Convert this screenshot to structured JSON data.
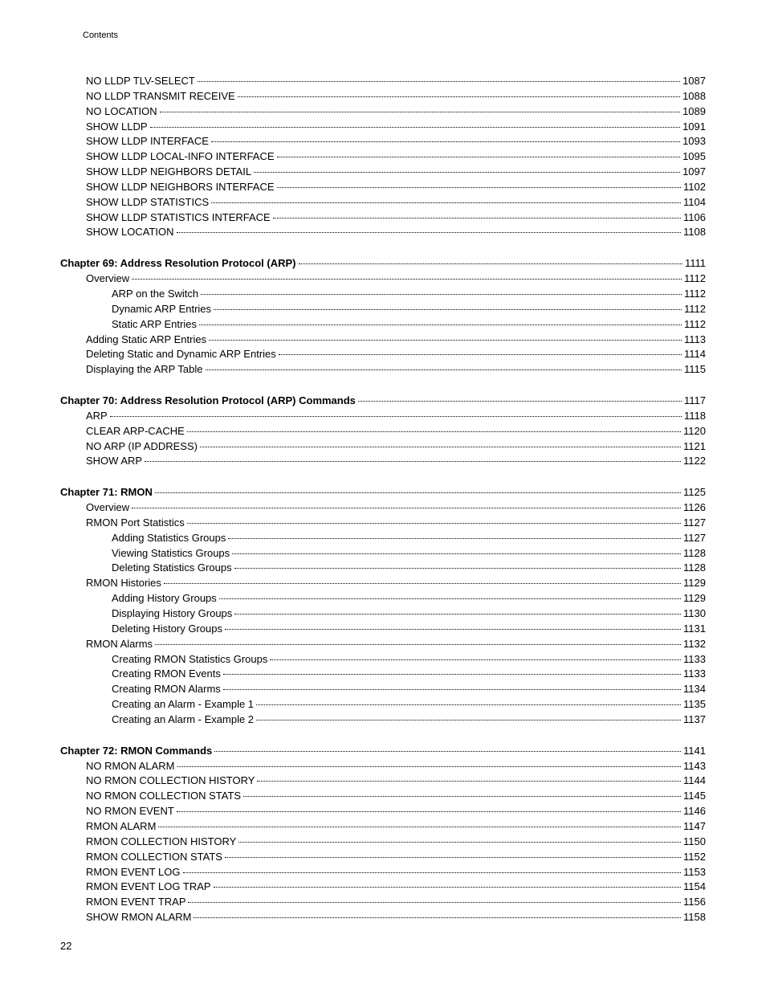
{
  "header_label": "Contents",
  "footer_page": "22",
  "sections": [
    {
      "entries": [
        {
          "label": "NO LLDP TLV-SELECT",
          "page": "1087",
          "indent": 1,
          "bold": false
        },
        {
          "label": "NO LLDP TRANSMIT RECEIVE",
          "page": "1088",
          "indent": 1,
          "bold": false
        },
        {
          "label": "NO LOCATION",
          "page": "1089",
          "indent": 1,
          "bold": false
        },
        {
          "label": "SHOW LLDP",
          "page": "1091",
          "indent": 1,
          "bold": false
        },
        {
          "label": "SHOW LLDP INTERFACE",
          "page": "1093",
          "indent": 1,
          "bold": false
        },
        {
          "label": "SHOW LLDP LOCAL-INFO INTERFACE",
          "page": "1095",
          "indent": 1,
          "bold": false
        },
        {
          "label": "SHOW LLDP NEIGHBORS DETAIL",
          "page": "1097",
          "indent": 1,
          "bold": false
        },
        {
          "label": "SHOW LLDP NEIGHBORS INTERFACE",
          "page": "1102",
          "indent": 1,
          "bold": false
        },
        {
          "label": "SHOW LLDP STATISTICS",
          "page": "1104",
          "indent": 1,
          "bold": false
        },
        {
          "label": "SHOW LLDP STATISTICS INTERFACE",
          "page": "1106",
          "indent": 1,
          "bold": false
        },
        {
          "label": "SHOW LOCATION",
          "page": "1108",
          "indent": 1,
          "bold": false
        }
      ]
    },
    {
      "entries": [
        {
          "label": "Chapter 69: Address Resolution Protocol (ARP) ",
          "page": "1111",
          "indent": 0,
          "bold": true
        },
        {
          "label": "Overview",
          "page": "1112",
          "indent": 1,
          "bold": false
        },
        {
          "label": "ARP on the Switch",
          "page": "1112",
          "indent": 2,
          "bold": false
        },
        {
          "label": "Dynamic ARP Entries",
          "page": "1112",
          "indent": 2,
          "bold": false
        },
        {
          "label": "Static ARP Entries",
          "page": "1112",
          "indent": 2,
          "bold": false
        },
        {
          "label": "Adding Static ARP Entries",
          "page": "1113",
          "indent": 1,
          "bold": false
        },
        {
          "label": "Deleting Static and Dynamic ARP Entries",
          "page": "1114",
          "indent": 1,
          "bold": false
        },
        {
          "label": "Displaying the ARP Table",
          "page": "1115",
          "indent": 1,
          "bold": false
        }
      ]
    },
    {
      "entries": [
        {
          "label": "Chapter 70: Address Resolution Protocol (ARP) Commands ",
          "page": "1117",
          "indent": 0,
          "bold": true
        },
        {
          "label": "ARP ",
          "page": "1118",
          "indent": 1,
          "bold": false
        },
        {
          "label": "CLEAR ARP-CACHE",
          "page": "1120",
          "indent": 1,
          "bold": false
        },
        {
          "label": "NO ARP (IP ADDRESS)",
          "page": "1121",
          "indent": 1,
          "bold": false
        },
        {
          "label": "SHOW ARP",
          "page": "1122",
          "indent": 1,
          "bold": false
        }
      ]
    },
    {
      "entries": [
        {
          "label": "Chapter 71: RMON ",
          "page": "1125",
          "indent": 0,
          "bold": true
        },
        {
          "label": "Overview",
          "page": "1126",
          "indent": 1,
          "bold": false
        },
        {
          "label": "RMON Port Statistics",
          "page": "1127",
          "indent": 1,
          "bold": false
        },
        {
          "label": "Adding Statistics Groups",
          "page": "1127",
          "indent": 2,
          "bold": false
        },
        {
          "label": "Viewing Statistics Groups",
          "page": "1128",
          "indent": 2,
          "bold": false
        },
        {
          "label": "Deleting Statistics Groups",
          "page": "1128",
          "indent": 2,
          "bold": false
        },
        {
          "label": "RMON Histories",
          "page": "1129",
          "indent": 1,
          "bold": false
        },
        {
          "label": "Adding History Groups",
          "page": "1129",
          "indent": 2,
          "bold": false
        },
        {
          "label": "Displaying History Groups",
          "page": "1130",
          "indent": 2,
          "bold": false
        },
        {
          "label": "Deleting History Groups",
          "page": "1131",
          "indent": 2,
          "bold": false
        },
        {
          "label": "RMON Alarms",
          "page": "1132",
          "indent": 1,
          "bold": false
        },
        {
          "label": "Creating RMON Statistics Groups",
          "page": "1133",
          "indent": 2,
          "bold": false
        },
        {
          "label": "Creating RMON Events",
          "page": "1133",
          "indent": 2,
          "bold": false
        },
        {
          "label": "Creating RMON Alarms",
          "page": "1134",
          "indent": 2,
          "bold": false
        },
        {
          "label": "Creating an Alarm - Example 1",
          "page": "1135",
          "indent": 2,
          "bold": false
        },
        {
          "label": "Creating an Alarm - Example 2",
          "page": "1137",
          "indent": 2,
          "bold": false
        }
      ]
    },
    {
      "entries": [
        {
          "label": "Chapter 72: RMON Commands ",
          "page": "1141",
          "indent": 0,
          "bold": true
        },
        {
          "label": "NO RMON ALARM",
          "page": "1143",
          "indent": 1,
          "bold": false
        },
        {
          "label": "NO RMON COLLECTION HISTORY",
          "page": "1144",
          "indent": 1,
          "bold": false
        },
        {
          "label": "NO RMON COLLECTION STATS",
          "page": "1145",
          "indent": 1,
          "bold": false
        },
        {
          "label": "NO RMON EVENT",
          "page": "1146",
          "indent": 1,
          "bold": false
        },
        {
          "label": "RMON ALARM",
          "page": "1147",
          "indent": 1,
          "bold": false
        },
        {
          "label": "RMON COLLECTION HISTORY",
          "page": "1150",
          "indent": 1,
          "bold": false
        },
        {
          "label": "RMON COLLECTION STATS",
          "page": "1152",
          "indent": 1,
          "bold": false
        },
        {
          "label": "RMON EVENT LOG",
          "page": "1153",
          "indent": 1,
          "bold": false
        },
        {
          "label": "RMON EVENT LOG TRAP",
          "page": "1154",
          "indent": 1,
          "bold": false
        },
        {
          "label": "RMON EVENT TRAP",
          "page": "1156",
          "indent": 1,
          "bold": false
        },
        {
          "label": "SHOW RMON ALARM",
          "page": "1158",
          "indent": 1,
          "bold": false
        }
      ]
    }
  ]
}
